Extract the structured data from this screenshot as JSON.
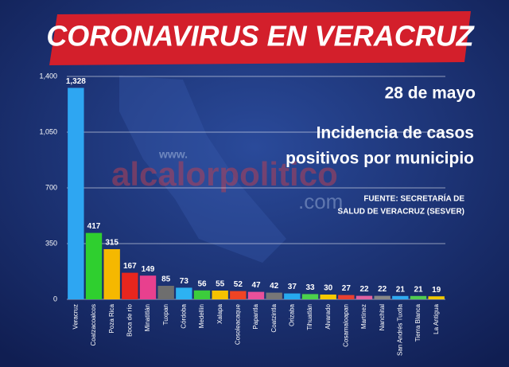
{
  "chart_data": {
    "type": "bar",
    "title": "CORONAVIRUS EN VERACRUZ",
    "date": "28 de mayo",
    "subtitle_lines": [
      "Incidencia de casos",
      "positivos por municipio"
    ],
    "source_lines": [
      "FUENTE: SECRETARÍA DE",
      "SALUD DE VERACRUZ (SESVER)"
    ],
    "watermark": [
      "www.",
      "alcalorpolitico",
      ".com"
    ],
    "categories": [
      "Veracruz",
      "Coatzacoalcos",
      "Poza Rica",
      "Boca de río",
      "Minatitlán",
      "Tuxpan",
      "Córdoba",
      "Medellín",
      "Xalapa",
      "Cosoleacaque",
      "Papantla",
      "Coatzintla",
      "Orizaba",
      "Tihuatlán",
      "Alvarado",
      "Cosamaloapan",
      "Martínez",
      "Nanchital",
      "San Andrés Tuxtla",
      "Tierra Blanca",
      "La Antigua"
    ],
    "values": [
      1328,
      417,
      315,
      167,
      149,
      85,
      73,
      56,
      55,
      52,
      47,
      42,
      37,
      33,
      30,
      27,
      22,
      22,
      21,
      21,
      19
    ],
    "value_labels": [
      "1,328",
      "417",
      "315",
      "167",
      "149",
      "85",
      "73",
      "56",
      "55",
      "52",
      "47",
      "42",
      "37",
      "33",
      "30",
      "27",
      "22",
      "22",
      "21",
      "21",
      "19"
    ],
    "colors": [
      "#2ea6f2",
      "#2fcf2f",
      "#f5b800",
      "#e8261e",
      "#e8408e",
      "#6e6e6e",
      "#2db2f2",
      "#3ccd3c",
      "#f5c200",
      "#f04424",
      "#e8509a",
      "#777777",
      "#26aaf0",
      "#4cd04c",
      "#f5c800",
      "#e84030",
      "#e060a0",
      "#888888",
      "#30aaf0",
      "#50cc50",
      "#f0c800"
    ],
    "ylim": [
      0,
      1400
    ],
    "yticks": [
      0,
      350,
      700,
      {
        "value": 1050,
        "label": "1,050"
      },
      {
        "value": 1400,
        "label": "1,400"
      }
    ],
    "grid": true
  }
}
